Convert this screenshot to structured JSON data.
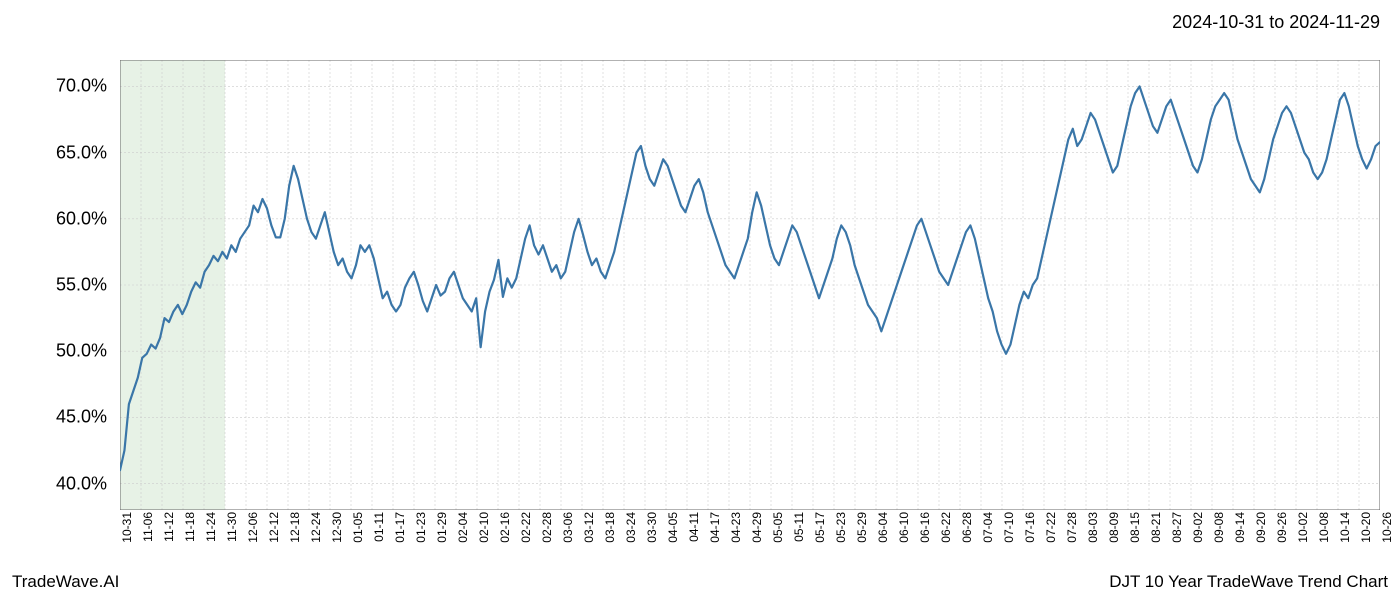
{
  "date_range": "2024-10-31 to 2024-11-29",
  "footer_left": "TradeWave.AI",
  "footer_right": "DJT 10 Year TradeWave Trend Chart",
  "chart": {
    "type": "line",
    "background_color": "#ffffff",
    "line_color": "#3a76a8",
    "line_width": 2.2,
    "grid_color": "#cccccc",
    "grid_dash": "2,2",
    "highlight_band": {
      "x_start_label": "10-31",
      "x_end_label": "11-30",
      "fill": "#dfeedd",
      "opacity": 0.75
    },
    "ylim": [
      38,
      72
    ],
    "ytick_values": [
      40,
      45,
      50,
      55,
      60,
      65,
      70
    ],
    "ytick_labels": [
      "40.0%",
      "45.0%",
      "50.0%",
      "55.0%",
      "60.0%",
      "65.0%",
      "70.0%"
    ],
    "x_labels": [
      "10-31",
      "11-06",
      "11-12",
      "11-18",
      "11-24",
      "11-30",
      "12-06",
      "12-12",
      "12-18",
      "12-24",
      "12-30",
      "01-05",
      "01-11",
      "01-17",
      "01-23",
      "01-29",
      "02-04",
      "02-10",
      "02-16",
      "02-22",
      "02-28",
      "03-06",
      "03-12",
      "03-18",
      "03-24",
      "03-30",
      "04-05",
      "04-11",
      "04-17",
      "04-23",
      "04-29",
      "05-05",
      "05-11",
      "05-17",
      "05-23",
      "05-29",
      "06-04",
      "06-10",
      "06-16",
      "06-22",
      "06-28",
      "07-04",
      "07-10",
      "07-16",
      "07-22",
      "07-28",
      "08-03",
      "08-09",
      "08-15",
      "08-21",
      "08-27",
      "09-02",
      "09-08",
      "09-14",
      "09-20",
      "09-26",
      "10-02",
      "10-08",
      "10-14",
      "10-20",
      "10-26"
    ],
    "series": [
      41.0,
      42.5,
      46.0,
      47.0,
      48.0,
      49.5,
      49.8,
      50.5,
      50.2,
      51.0,
      52.5,
      52.2,
      53.0,
      53.5,
      52.8,
      53.5,
      54.5,
      55.2,
      54.8,
      56.0,
      56.5,
      57.2,
      56.8,
      57.5,
      57.0,
      58.0,
      57.5,
      58.5,
      59.0,
      59.5,
      61.0,
      60.5,
      61.5,
      60.8,
      59.5,
      58.6,
      58.6,
      60.0,
      62.5,
      64.0,
      63.0,
      61.5,
      60.0,
      59.0,
      58.5,
      59.5,
      60.5,
      59.0,
      57.5,
      56.5,
      57.0,
      56.0,
      55.5,
      56.5,
      58.0,
      57.5,
      58.0,
      57.0,
      55.5,
      54.0,
      54.5,
      53.5,
      53.0,
      53.5,
      54.8,
      55.5,
      56.0,
      55.0,
      53.8,
      53.0,
      54.0,
      55.0,
      54.2,
      54.5,
      55.5,
      56.0,
      55.0,
      54.0,
      53.5,
      53.0,
      54.0,
      50.3,
      53.0,
      54.5,
      55.4,
      56.9,
      54.1,
      55.5,
      54.8,
      55.5,
      57.0,
      58.5,
      59.5,
      58.0,
      57.3,
      58.0,
      57.0,
      56.0,
      56.5,
      55.5,
      56.0,
      57.5,
      59.0,
      60.0,
      58.8,
      57.5,
      56.5,
      57.0,
      56.0,
      55.5,
      56.5,
      57.5,
      59.0,
      60.5,
      62.0,
      63.5,
      65.0,
      65.5,
      64.0,
      63.0,
      62.5,
      63.5,
      64.5,
      64.0,
      63.0,
      62.0,
      61.0,
      60.5,
      61.5,
      62.5,
      63.0,
      62.0,
      60.5,
      59.5,
      58.5,
      57.5,
      56.5,
      56.0,
      55.5,
      56.5,
      57.5,
      58.5,
      60.5,
      62.0,
      61.0,
      59.5,
      58.0,
      57.0,
      56.5,
      57.5,
      58.5,
      59.5,
      59.0,
      58.0,
      57.0,
      56.0,
      55.0,
      54.0,
      55.0,
      56.0,
      57.0,
      58.5,
      59.5,
      59.0,
      58.0,
      56.5,
      55.5,
      54.5,
      53.5,
      53.0,
      52.5,
      51.5,
      52.5,
      53.5,
      54.5,
      55.5,
      56.5,
      57.5,
      58.5,
      59.5,
      60.0,
      59.0,
      58.0,
      57.0,
      56.0,
      55.5,
      55.0,
      56.0,
      57.0,
      58.0,
      59.0,
      59.5,
      58.5,
      57.0,
      55.5,
      54.0,
      53.0,
      51.5,
      50.5,
      49.8,
      50.5,
      52.0,
      53.5,
      54.5,
      54.0,
      55.0,
      55.5,
      57.0,
      58.5,
      60.0,
      61.5,
      63.0,
      64.5,
      66.0,
      66.8,
      65.5,
      66.0,
      67.0,
      68.0,
      67.5,
      66.5,
      65.5,
      64.5,
      63.5,
      64.0,
      65.5,
      67.0,
      68.5,
      69.5,
      70.0,
      69.0,
      68.0,
      67.0,
      66.5,
      67.5,
      68.5,
      69.0,
      68.0,
      67.0,
      66.0,
      65.0,
      64.0,
      63.5,
      64.5,
      66.0,
      67.5,
      68.5,
      69.0,
      69.5,
      69.0,
      67.5,
      66.0,
      65.0,
      64.0,
      63.0,
      62.5,
      62.0,
      63.0,
      64.5,
      66.0,
      67.0,
      68.0,
      68.5,
      68.0,
      67.0,
      66.0,
      65.0,
      64.5,
      63.5,
      63.0,
      63.5,
      64.5,
      66.0,
      67.5,
      69.0,
      69.5,
      68.5,
      67.0,
      65.5,
      64.5,
      63.8,
      64.5,
      65.5,
      65.8
    ]
  }
}
